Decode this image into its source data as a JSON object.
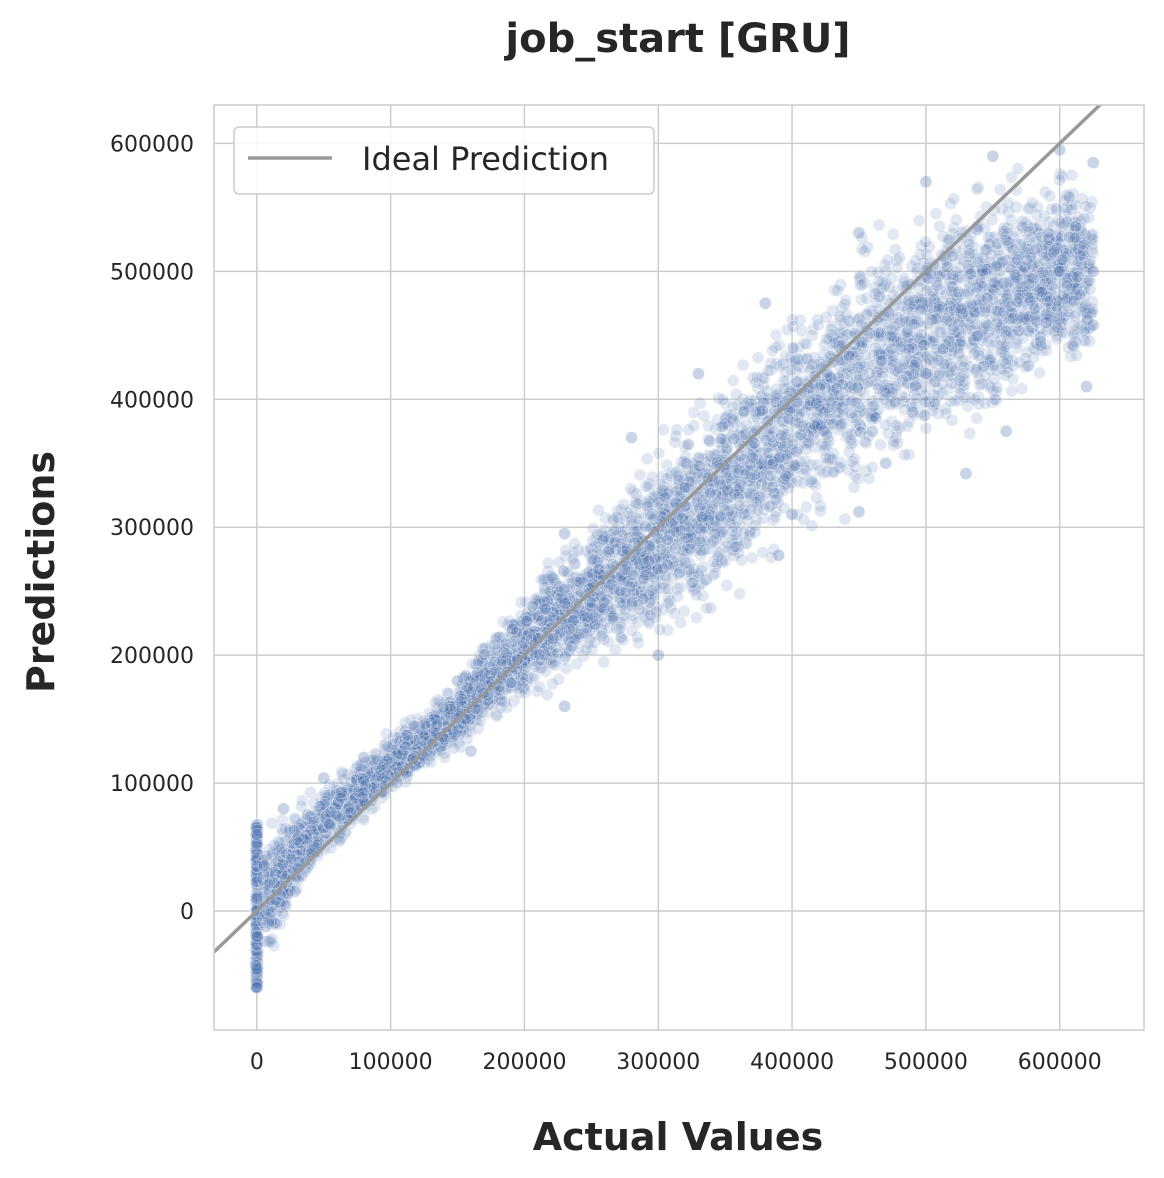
{
  "chart_data": {
    "type": "scatter",
    "title": "job_start [GRU]",
    "xlabel": "Actual Values",
    "ylabel": "Predictions",
    "xlim": [
      -32000,
      663000
    ],
    "ylim": [
      -93000,
      630000
    ],
    "xticks": [
      0,
      100000,
      200000,
      300000,
      400000,
      500000,
      600000
    ],
    "yticks": [
      0,
      100000,
      200000,
      300000,
      400000,
      500000,
      600000
    ],
    "xtick_labels": [
      "0",
      "100000",
      "200000",
      "300000",
      "400000",
      "500000",
      "600000"
    ],
    "ytick_labels": [
      "0",
      "100000",
      "200000",
      "300000",
      "400000",
      "500000",
      "600000"
    ],
    "grid": true,
    "legend": {
      "placement": "top-left",
      "entries": [
        {
          "label": "Ideal Prediction",
          "color": "#999999",
          "style": "line"
        }
      ]
    },
    "colors": {
      "points": "#4c72b0",
      "ideal_line": "#999999",
      "grid": "#cccccc"
    },
    "series": [
      {
        "kind": "scatter",
        "approximate_density": "dense cloud (tens of thousands of points)",
        "summary_envelope": [
          {
            "x": 0,
            "y_low": -60000,
            "y_high": 68000
          },
          {
            "x": 50000,
            "y_low": 35000,
            "y_high": 104000
          },
          {
            "x": 100000,
            "y_low": 85000,
            "y_high": 142000
          },
          {
            "x": 150000,
            "y_low": 120000,
            "y_high": 185000
          },
          {
            "x": 200000,
            "y_low": 155000,
            "y_high": 260000
          },
          {
            "x": 250000,
            "y_low": 185000,
            "y_high": 315000
          },
          {
            "x": 300000,
            "y_low": 198000,
            "y_high": 375000
          },
          {
            "x": 350000,
            "y_low": 230000,
            "y_high": 430000
          },
          {
            "x": 400000,
            "y_low": 278000,
            "y_high": 485000
          },
          {
            "x": 450000,
            "y_low": 305000,
            "y_high": 540000
          },
          {
            "x": 500000,
            "y_low": 345000,
            "y_high": 570000
          },
          {
            "x": 550000,
            "y_low": 365000,
            "y_high": 592000
          },
          {
            "x": 600000,
            "y_low": 405000,
            "y_high": 595000
          },
          {
            "x": 625000,
            "y_low": 408000,
            "y_high": 588000
          }
        ],
        "point_samples": [
          {
            "x": 0,
            "y": -60000
          },
          {
            "x": 0,
            "y": -45000
          },
          {
            "x": 0,
            "y": -20000
          },
          {
            "x": 0,
            "y": 10000
          },
          {
            "x": 0,
            "y": 35000
          },
          {
            "x": 0,
            "y": 60000
          },
          {
            "x": 20000,
            "y": 80000
          },
          {
            "x": 50000,
            "y": 104000
          },
          {
            "x": 80000,
            "y": 120000
          },
          {
            "x": 80000,
            "y": 85000
          },
          {
            "x": 150000,
            "y": 180000
          },
          {
            "x": 160000,
            "y": 125000
          },
          {
            "x": 230000,
            "y": 295000
          },
          {
            "x": 230000,
            "y": 160000
          },
          {
            "x": 280000,
            "y": 370000
          },
          {
            "x": 300000,
            "y": 200000
          },
          {
            "x": 330000,
            "y": 420000
          },
          {
            "x": 380000,
            "y": 475000
          },
          {
            "x": 390000,
            "y": 278000
          },
          {
            "x": 400000,
            "y": 310000
          },
          {
            "x": 450000,
            "y": 530000
          },
          {
            "x": 450000,
            "y": 312000
          },
          {
            "x": 470000,
            "y": 350000
          },
          {
            "x": 500000,
            "y": 570000
          },
          {
            "x": 500000,
            "y": 420000
          },
          {
            "x": 530000,
            "y": 342000
          },
          {
            "x": 550000,
            "y": 590000
          },
          {
            "x": 560000,
            "y": 375000
          },
          {
            "x": 590000,
            "y": 460000
          },
          {
            "x": 600000,
            "y": 595000
          },
          {
            "x": 600000,
            "y": 500000
          },
          {
            "x": 620000,
            "y": 410000
          },
          {
            "x": 625000,
            "y": 458000
          },
          {
            "x": 625000,
            "y": 500000
          },
          {
            "x": 625000,
            "y": 585000
          }
        ]
      },
      {
        "name": "Ideal Prediction",
        "kind": "line",
        "x": [
          -32000,
          663000
        ],
        "y": [
          -32000,
          663000
        ]
      }
    ]
  }
}
